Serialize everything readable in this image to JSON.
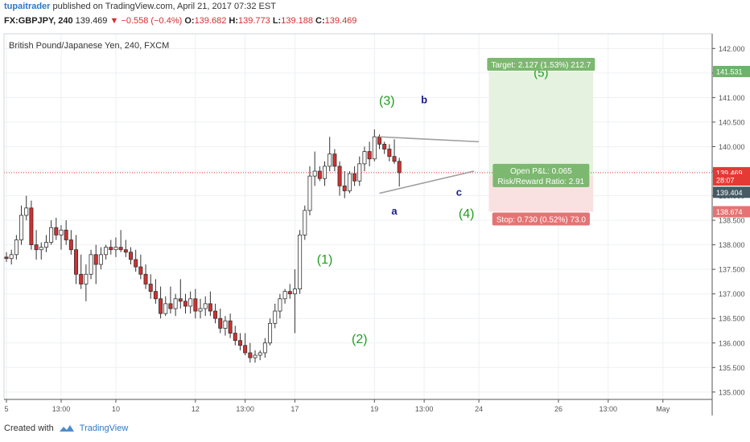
{
  "header": {
    "author": "tupaitrader",
    "published": "published on TradingView.com, April 21, 2017 07:32 EST"
  },
  "ohlc": {
    "symbol": "FX:GBPJPY, 240",
    "last": "139.469",
    "change": "▼ −0.558 (−0.4%)",
    "o_label": "O:",
    "o": "139.682",
    "h_label": "H:",
    "h": "139.773",
    "l_label": "L:",
    "l": "139.188",
    "c_label": "C:",
    "c": "139.469"
  },
  "chart_data": {
    "type": "candlestick",
    "title": "British Pound/Japanese Yen, 240, FXCM",
    "y_ticks": [
      "135.000",
      "135.500",
      "136.000",
      "136.500",
      "137.000",
      "137.500",
      "138.000",
      "138.500",
      "139.000",
      "139.500",
      "140.000",
      "140.500",
      "141.000",
      "141.500",
      "142.000"
    ],
    "ylim": [
      134.85,
      142.3
    ],
    "x_ticks": [
      {
        "label": "5",
        "x": 0
      },
      {
        "label": "13:00",
        "x": 11
      },
      {
        "label": "10",
        "x": 22
      },
      {
        "label": "12",
        "x": 38
      },
      {
        "label": "13:00",
        "x": 48
      },
      {
        "label": "17",
        "x": 58
      },
      {
        "label": "19",
        "x": 74
      },
      {
        "label": "13:00",
        "x": 84
      },
      {
        "label": "24",
        "x": 95
      },
      {
        "label": "26",
        "x": 111
      },
      {
        "label": "13:00",
        "x": 121
      },
      {
        "label": "May",
        "x": 132
      }
    ],
    "candles": [
      [
        137.75,
        137.85,
        137.65,
        137.72
      ],
      [
        137.72,
        137.9,
        137.6,
        137.8
      ],
      [
        137.8,
        138.2,
        137.7,
        138.1
      ],
      [
        138.1,
        138.8,
        138.0,
        138.6
      ],
      [
        138.6,
        139.0,
        138.5,
        138.75
      ],
      [
        138.75,
        138.9,
        137.9,
        138.0
      ],
      [
        138.0,
        138.3,
        137.7,
        137.9
      ],
      [
        137.9,
        138.05,
        137.7,
        137.95
      ],
      [
        137.95,
        138.2,
        137.85,
        138.05
      ],
      [
        138.05,
        138.5,
        138.0,
        138.35
      ],
      [
        138.35,
        138.55,
        138.1,
        138.2
      ],
      [
        138.2,
        138.4,
        137.9,
        138.3
      ],
      [
        138.3,
        138.5,
        138.0,
        138.1
      ],
      [
        138.1,
        138.3,
        137.8,
        137.9
      ],
      [
        137.9,
        138.2,
        137.2,
        137.4
      ],
      [
        137.4,
        137.8,
        137.1,
        137.2
      ],
      [
        137.2,
        137.6,
        136.85,
        137.4
      ],
      [
        137.4,
        137.9,
        137.3,
        137.8
      ],
      [
        137.8,
        138.0,
        137.2,
        137.6
      ],
      [
        137.6,
        137.95,
        137.5,
        137.8
      ],
      [
        137.8,
        138.0,
        137.7,
        137.95
      ],
      [
        137.95,
        138.1,
        137.8,
        137.9
      ],
      [
        137.9,
        138.15,
        137.75,
        137.95
      ],
      [
        137.95,
        138.3,
        137.85,
        137.9
      ],
      [
        137.9,
        138.1,
        137.75,
        137.85
      ],
      [
        137.85,
        137.95,
        137.6,
        137.7
      ],
      [
        137.7,
        137.9,
        137.45,
        137.55
      ],
      [
        137.55,
        137.8,
        137.3,
        137.4
      ],
      [
        137.4,
        137.6,
        137.1,
        137.2
      ],
      [
        137.2,
        137.4,
        136.9,
        137.05
      ],
      [
        137.05,
        137.3,
        136.8,
        136.9
      ],
      [
        136.9,
        137.15,
        136.5,
        136.6
      ],
      [
        136.6,
        136.95,
        136.55,
        136.8
      ],
      [
        136.8,
        137.15,
        136.6,
        136.7
      ],
      [
        136.7,
        137.0,
        136.55,
        136.9
      ],
      [
        136.9,
        137.3,
        136.7,
        136.85
      ],
      [
        136.85,
        137.0,
        136.6,
        136.75
      ],
      [
        136.75,
        137.05,
        136.6,
        136.9
      ],
      [
        136.9,
        137.1,
        136.5,
        136.65
      ],
      [
        136.65,
        136.9,
        136.5,
        136.7
      ],
      [
        136.7,
        136.95,
        136.55,
        136.8
      ],
      [
        136.8,
        137.05,
        136.55,
        136.65
      ],
      [
        136.65,
        136.8,
        136.4,
        136.5
      ],
      [
        136.5,
        136.7,
        136.2,
        136.3
      ],
      [
        136.3,
        136.55,
        136.15,
        136.45
      ],
      [
        136.45,
        136.6,
        136.1,
        136.2
      ],
      [
        136.2,
        136.35,
        135.95,
        136.05
      ],
      [
        136.05,
        136.2,
        135.85,
        135.95
      ],
      [
        135.95,
        136.2,
        135.75,
        135.8
      ],
      [
        135.8,
        136.0,
        135.6,
        135.7
      ],
      [
        135.7,
        135.85,
        135.6,
        135.75
      ],
      [
        135.75,
        135.85,
        135.65,
        135.8
      ],
      [
        135.8,
        136.1,
        135.7,
        136.0
      ],
      [
        136.0,
        136.5,
        135.95,
        136.4
      ],
      [
        136.4,
        136.8,
        136.3,
        136.65
      ],
      [
        136.65,
        137.0,
        136.5,
        136.9
      ],
      [
        136.9,
        137.1,
        136.8,
        137.05
      ],
      [
        137.05,
        137.2,
        136.9,
        137.0
      ],
      [
        137.0,
        137.5,
        136.2,
        137.1
      ],
      [
        137.1,
        138.3,
        137.0,
        138.2
      ],
      [
        138.2,
        138.8,
        138.1,
        138.7
      ],
      [
        138.7,
        139.6,
        138.6,
        139.4
      ],
      [
        139.4,
        139.9,
        139.2,
        139.5
      ],
      [
        139.5,
        139.6,
        139.3,
        139.35
      ],
      [
        139.35,
        139.7,
        139.2,
        139.6
      ],
      [
        139.6,
        140.2,
        139.5,
        139.85
      ],
      [
        139.85,
        139.95,
        139.5,
        139.6
      ],
      [
        139.6,
        139.7,
        139.0,
        139.2
      ],
      [
        139.2,
        139.5,
        138.95,
        139.1
      ],
      [
        139.1,
        139.5,
        139.05,
        139.45
      ],
      [
        139.45,
        139.6,
        139.2,
        139.3
      ],
      [
        139.3,
        139.8,
        139.2,
        139.65
      ],
      [
        139.65,
        140.0,
        139.5,
        139.9
      ],
      [
        139.9,
        140.1,
        139.6,
        139.75
      ],
      [
        139.75,
        140.35,
        139.7,
        140.2
      ],
      [
        140.2,
        140.25,
        139.95,
        140.05
      ],
      [
        140.05,
        140.1,
        139.85,
        139.95
      ],
      [
        139.95,
        140.05,
        139.7,
        139.8
      ],
      [
        139.8,
        140.15,
        139.65,
        139.7
      ],
      [
        139.7,
        139.773,
        139.188,
        139.469
      ]
    ],
    "trendlines": [
      {
        "x1": 75,
        "y1": 140.2,
        "x2": 95,
        "y2": 140.1
      },
      {
        "x1": 75,
        "y1": 139.05,
        "x2": 94,
        "y2": 139.5
      }
    ],
    "wave_labels": [
      {
        "text": "(3)",
        "x": 76.5,
        "y": 140.85,
        "color": "#1e9e1e"
      },
      {
        "text": "b",
        "x": 84,
        "y": 140.88,
        "color": "#1a1a8a"
      },
      {
        "text": "a",
        "x": 78,
        "y": 138.62,
        "color": "#1a1a8a"
      },
      {
        "text": "c",
        "x": 91,
        "y": 139.0,
        "color": "#1a1a8a"
      },
      {
        "text": "(4)",
        "x": 92.5,
        "y": 138.55,
        "color": "#1e9e1e"
      },
      {
        "text": "(1)",
        "x": 64,
        "y": 137.62,
        "color": "#1e9e1e"
      },
      {
        "text": "(2)",
        "x": 71,
        "y": 136.0,
        "color": "#1e9e1e"
      }
    ],
    "position": {
      "entry": 139.404,
      "target": 141.531,
      "stop": 138.674,
      "x_start": 97,
      "x_end": 118,
      "target_label": "Target: 2.127 (1.53%) 212.7",
      "pnl_label": "Open P&L: 0.065",
      "rr_label": "Risk/Reward Ratio: 2.91",
      "stop_label": "Stop: 0.730 (0.52%) 73.0",
      "partial_wave_label": "(5)"
    },
    "price_markers": [
      {
        "value": "141.531",
        "price": 141.531,
        "bg": "#6fb26b"
      },
      {
        "value": "139.469",
        "price": 139.469,
        "bg": "#e53935"
      },
      {
        "value": "28:07",
        "price": 139.32,
        "bg": "#e53935"
      },
      {
        "value": "139.404",
        "price": 139.07,
        "bg": "#455a64"
      },
      {
        "value": "138.674",
        "price": 138.674,
        "bg": "#e57373"
      }
    ]
  },
  "footer": {
    "created_with": "Created with",
    "brand": "TradingView"
  },
  "colors": {
    "up_body": "#ffffff",
    "up_border": "#333333",
    "down_body": "#d32f2f",
    "down_border": "#333333",
    "wick": "#333333",
    "grid": "#eef0f3",
    "target_zone": "#e6f2e0",
    "stop_zone": "#f9e1e1",
    "target_label_bg": "#7cb86f",
    "stop_label_bg": "#e57373",
    "trendline": "#9e9e9e"
  }
}
